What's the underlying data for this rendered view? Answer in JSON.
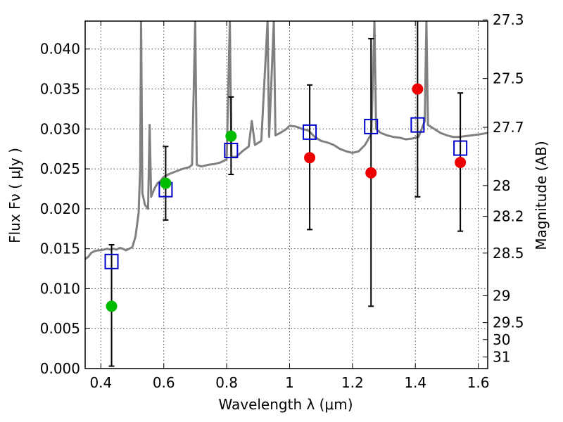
{
  "chart_data": {
    "type": "scatter",
    "xlabel": "Wavelength  λ (μm)",
    "ylabel": "Flux  Fν  ( μJy )",
    "ylabel_right": "Magnitude (AB)",
    "xlim": [
      0.35,
      1.63
    ],
    "ylim": [
      0.0,
      0.0435
    ],
    "grid": true,
    "x_ticks": [
      {
        "value": 0.4,
        "label": "0.4"
      },
      {
        "value": 0.6,
        "label": "0.6"
      },
      {
        "value": 0.8,
        "label": "0.8"
      },
      {
        "value": 1.0,
        "label": "1"
      },
      {
        "value": 1.2,
        "label": "1.2"
      },
      {
        "value": 1.4,
        "label": "1.4"
      },
      {
        "value": 1.6,
        "label": "1.6"
      }
    ],
    "y_ticks": [
      {
        "value": 0.0,
        "label": "0.000"
      },
      {
        "value": 0.005,
        "label": "0.005"
      },
      {
        "value": 0.01,
        "label": "0.010"
      },
      {
        "value": 0.015,
        "label": "0.015"
      },
      {
        "value": 0.02,
        "label": "0.020"
      },
      {
        "value": 0.025,
        "label": "0.025"
      },
      {
        "value": 0.03,
        "label": "0.030"
      },
      {
        "value": 0.035,
        "label": "0.035"
      },
      {
        "value": 0.04,
        "label": "0.040"
      }
    ],
    "y2_ticks": [
      {
        "value": 27.3,
        "label": "27.3"
      },
      {
        "value": 27.5,
        "label": "27.5"
      },
      {
        "value": 27.7,
        "label": "27.7"
      },
      {
        "value": 28.0,
        "label": "28"
      },
      {
        "value": 28.2,
        "label": "28.2"
      },
      {
        "value": 28.5,
        "label": "28.5"
      },
      {
        "value": 29.0,
        "label": "29"
      },
      {
        "value": 29.5,
        "label": "29.5"
      },
      {
        "value": 30.0,
        "label": "30"
      },
      {
        "value": 31.0,
        "label": "31"
      }
    ],
    "colors": {
      "model": "#808080",
      "green": "#00bb00",
      "red": "#ee0000",
      "blue": "#0000cc",
      "errorbar": "#000000",
      "grid": "#444444"
    },
    "model_spectrum": [
      [
        0.35,
        0.0137
      ],
      [
        0.36,
        0.014
      ],
      [
        0.37,
        0.0145
      ],
      [
        0.38,
        0.0147
      ],
      [
        0.39,
        0.0148
      ],
      [
        0.4,
        0.0148
      ],
      [
        0.41,
        0.0149
      ],
      [
        0.42,
        0.015
      ],
      [
        0.43,
        0.0149
      ],
      [
        0.44,
        0.015
      ],
      [
        0.45,
        0.0149
      ],
      [
        0.46,
        0.0151
      ],
      [
        0.47,
        0.015
      ],
      [
        0.48,
        0.0148
      ],
      [
        0.49,
        0.015
      ],
      [
        0.5,
        0.0152
      ],
      [
        0.51,
        0.0165
      ],
      [
        0.52,
        0.0195
      ],
      [
        0.525,
        0.025
      ],
      [
        0.528,
        0.0435
      ],
      [
        0.532,
        0.022
      ],
      [
        0.54,
        0.0205
      ],
      [
        0.55,
        0.02
      ],
      [
        0.555,
        0.0305
      ],
      [
        0.56,
        0.0215
      ],
      [
        0.57,
        0.0225
      ],
      [
        0.58,
        0.0232
      ],
      [
        0.59,
        0.0235
      ],
      [
        0.6,
        0.024
      ],
      [
        0.62,
        0.0244
      ],
      [
        0.64,
        0.0247
      ],
      [
        0.66,
        0.025
      ],
      [
        0.68,
        0.0252
      ],
      [
        0.69,
        0.0255
      ],
      [
        0.7,
        0.0435
      ],
      [
        0.705,
        0.0255
      ],
      [
        0.72,
        0.0253
      ],
      [
        0.74,
        0.0255
      ],
      [
        0.76,
        0.0256
      ],
      [
        0.78,
        0.0258
      ],
      [
        0.8,
        0.0262
      ],
      [
        0.81,
        0.0435
      ],
      [
        0.815,
        0.0265
      ],
      [
        0.83,
        0.0265
      ],
      [
        0.85,
        0.0272
      ],
      [
        0.87,
        0.0278
      ],
      [
        0.88,
        0.031
      ],
      [
        0.89,
        0.028
      ],
      [
        0.91,
        0.0285
      ],
      [
        0.93,
        0.0435
      ],
      [
        0.935,
        0.029
      ],
      [
        0.95,
        0.0435
      ],
      [
        0.955,
        0.0292
      ],
      [
        0.97,
        0.0295
      ],
      [
        0.99,
        0.03
      ],
      [
        1.0,
        0.0304
      ],
      [
        1.02,
        0.0303
      ],
      [
        1.04,
        0.03
      ],
      [
        1.06,
        0.0298
      ],
      [
        1.08,
        0.029
      ],
      [
        1.1,
        0.0285
      ],
      [
        1.12,
        0.0283
      ],
      [
        1.14,
        0.028
      ],
      [
        1.16,
        0.0275
      ],
      [
        1.18,
        0.0272
      ],
      [
        1.2,
        0.027
      ],
      [
        1.22,
        0.0272
      ],
      [
        1.24,
        0.028
      ],
      [
        1.26,
        0.0294
      ],
      [
        1.27,
        0.0435
      ],
      [
        1.275,
        0.03
      ],
      [
        1.29,
        0.0295
      ],
      [
        1.31,
        0.0292
      ],
      [
        1.33,
        0.029
      ],
      [
        1.35,
        0.0289
      ],
      [
        1.37,
        0.0287
      ],
      [
        1.39,
        0.0288
      ],
      [
        1.41,
        0.029
      ],
      [
        1.42,
        0.03
      ],
      [
        1.43,
        0.031
      ],
      [
        1.435,
        0.0435
      ],
      [
        1.44,
        0.0305
      ],
      [
        1.46,
        0.03
      ],
      [
        1.48,
        0.0295
      ],
      [
        1.5,
        0.0292
      ],
      [
        1.52,
        0.029
      ],
      [
        1.54,
        0.029
      ],
      [
        1.56,
        0.0291
      ],
      [
        1.58,
        0.0292
      ],
      [
        1.6,
        0.0293
      ],
      [
        1.63,
        0.0295
      ]
    ],
    "squares": [
      {
        "x": 0.434,
        "y": 0.0134
      },
      {
        "x": 0.606,
        "y": 0.0224
      },
      {
        "x": 0.814,
        "y": 0.0273
      },
      {
        "x": 1.064,
        "y": 0.0296
      },
      {
        "x": 1.259,
        "y": 0.0303
      },
      {
        "x": 1.407,
        "y": 0.0305
      },
      {
        "x": 1.543,
        "y": 0.0276
      }
    ],
    "points": [
      {
        "x": 0.434,
        "y": 0.0078,
        "color": "green",
        "err_low": 0.0003,
        "err_high": 0.0155
      },
      {
        "x": 0.606,
        "y": 0.0232,
        "color": "green",
        "err_low": 0.0186,
        "err_high": 0.0278
      },
      {
        "x": 0.814,
        "y": 0.0291,
        "color": "green",
        "err_low": 0.0243,
        "err_high": 0.034
      },
      {
        "x": 1.064,
        "y": 0.0264,
        "color": "red",
        "err_low": 0.0174,
        "err_high": 0.0355
      },
      {
        "x": 1.259,
        "y": 0.0245,
        "color": "red",
        "err_low": 0.0078,
        "err_high": 0.0413
      },
      {
        "x": 1.407,
        "y": 0.035,
        "color": "red",
        "err_low": 0.0215,
        "err_high": 0.0435
      },
      {
        "x": 1.543,
        "y": 0.0258,
        "color": "red",
        "err_low": 0.0172,
        "err_high": 0.0345
      }
    ]
  }
}
